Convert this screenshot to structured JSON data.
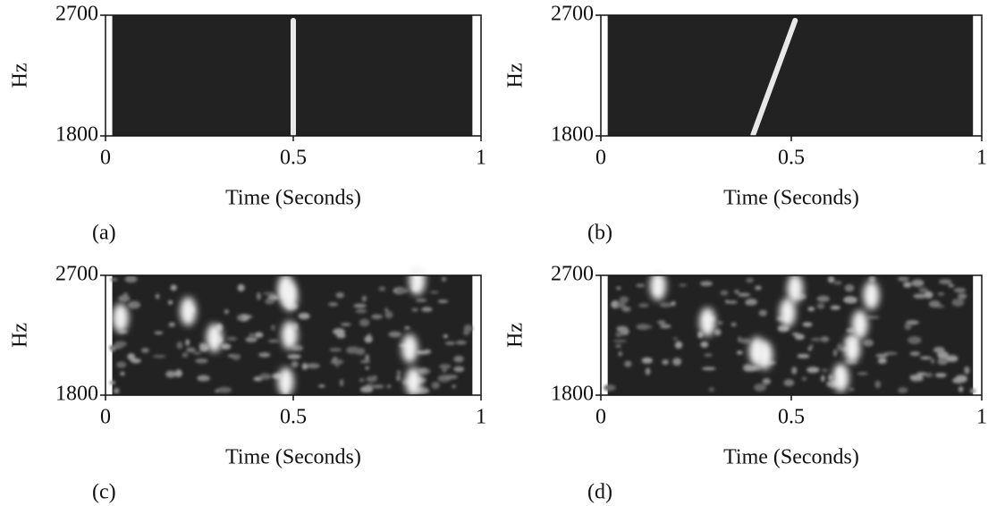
{
  "chart_data": [
    {
      "type": "line",
      "caption": "(a)",
      "xlabel": "Time (Seconds)",
      "ylabel": "Hz",
      "xlim": [
        0,
        1
      ],
      "ylim": [
        1800,
        2700
      ],
      "xticks": [
        0,
        0.5,
        1
      ],
      "yticks": [
        1800,
        2700
      ],
      "x": [
        0.5,
        0.5
      ],
      "y": [
        1810,
        2660
      ],
      "color": "#e8e8e8"
    },
    {
      "type": "line",
      "caption": "(b)",
      "xlabel": "Time (Seconds)",
      "ylabel": "Hz",
      "xlim": [
        0,
        1
      ],
      "ylim": [
        1800,
        2700
      ],
      "xticks": [
        0,
        0.5,
        1
      ],
      "yticks": [
        1800,
        2700
      ],
      "x": [
        0.4,
        0.51
      ],
      "y": [
        1810,
        2660
      ],
      "color": "#e8e8e8"
    },
    {
      "type": "scatter",
      "caption": "(c)",
      "xlabel": "Time (Seconds)",
      "ylabel": "Hz",
      "xlim": [
        0,
        1
      ],
      "ylim": [
        1800,
        2700
      ],
      "xticks": [
        0,
        0.5,
        1
      ],
      "yticks": [
        1800,
        2700
      ],
      "x": [
        0.48,
        0.49,
        0.49,
        0.48,
        0.83,
        0.81,
        0.82,
        0.04,
        0.22,
        0.29
      ],
      "y": [
        2600,
        2540,
        2250,
        1900,
        2660,
        2150,
        1900,
        2380,
        2430,
        2230
      ],
      "color": "#f2f2f2"
    },
    {
      "type": "scatter",
      "caption": "(d)",
      "xlabel": "Time (Seconds)",
      "ylabel": "Hz",
      "xlim": [
        0,
        1
      ],
      "ylim": [
        1800,
        2700
      ],
      "xticks": [
        0,
        0.5,
        1
      ],
      "yticks": [
        1800,
        2700
      ],
      "x": [
        0.51,
        0.49,
        0.43,
        0.41,
        0.71,
        0.68,
        0.66,
        0.63,
        0.28,
        0.15
      ],
      "y": [
        2600,
        2420,
        2100,
        2130,
        2550,
        2330,
        2150,
        1930,
        2350,
        2620
      ],
      "color": "#f2f2f2"
    }
  ]
}
